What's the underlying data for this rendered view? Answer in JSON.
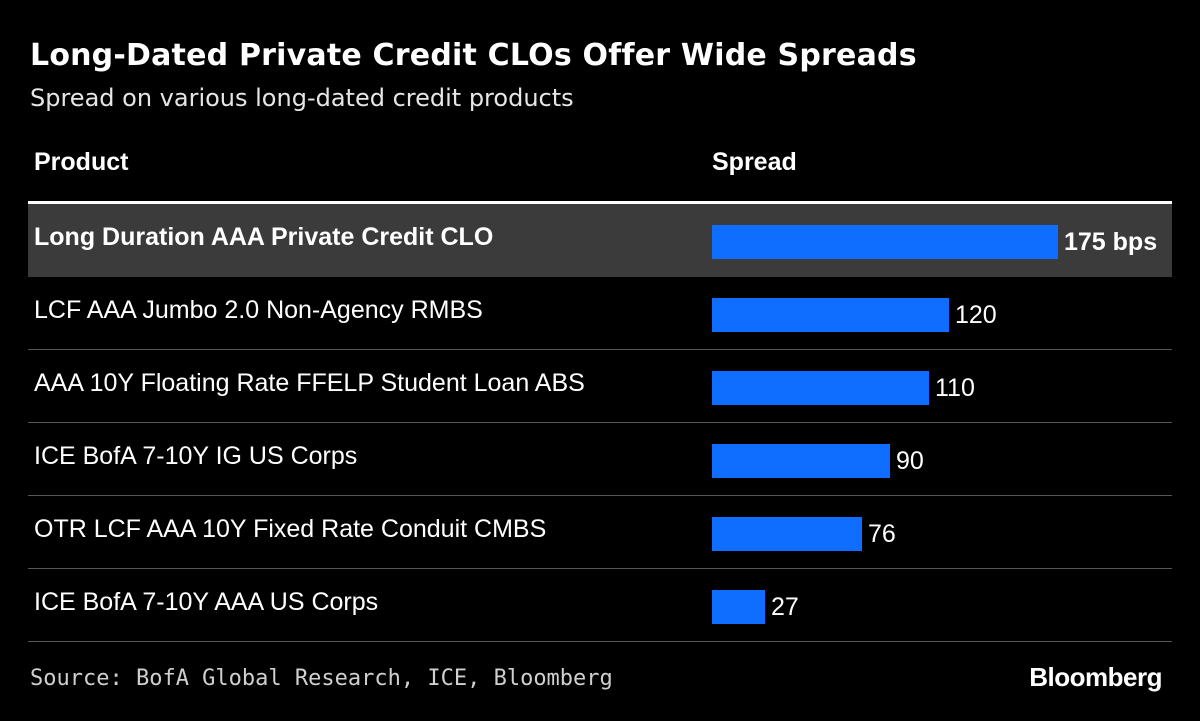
{
  "title": "Long-Dated Private Credit CLOs Offer Wide Spreads",
  "subtitle": "Spread on various long-dated credit products",
  "columns": {
    "product": "Product",
    "spread": "Spread"
  },
  "source": "Source: BofA Global Research, ICE, Bloomberg",
  "brand": "Bloomberg",
  "colors": {
    "background": "#000000",
    "bar": "#0f6dff",
    "highlight_row": "#3b3b3b",
    "text": "#ffffff"
  },
  "chart_data": {
    "type": "bar",
    "orientation": "horizontal",
    "title": "Long-Dated Private Credit CLOs Offer Wide Spreads",
    "subtitle": "Spread on various long-dated credit products",
    "xlabel": "Spread",
    "ylabel": "Product",
    "unit": "bps",
    "xlim": [
      0,
      175
    ],
    "categories": [
      "Long Duration AAA Private Credit CLO",
      "LCF AAA Jumbo 2.0 Non-Agency RMBS",
      "AAA 10Y Floating Rate FFELP Student Loan ABS",
      "ICE BofA 7-10Y IG US Corps",
      "OTR LCF AAA 10Y Fixed Rate Conduit CMBS",
      "ICE BofA 7-10Y AAA US Corps"
    ],
    "values": [
      175,
      120,
      110,
      90,
      76,
      27
    ],
    "value_labels": [
      "175 bps",
      "120",
      "110",
      "90",
      "76",
      "27"
    ],
    "highlighted": [
      true,
      false,
      false,
      false,
      false,
      false
    ]
  }
}
